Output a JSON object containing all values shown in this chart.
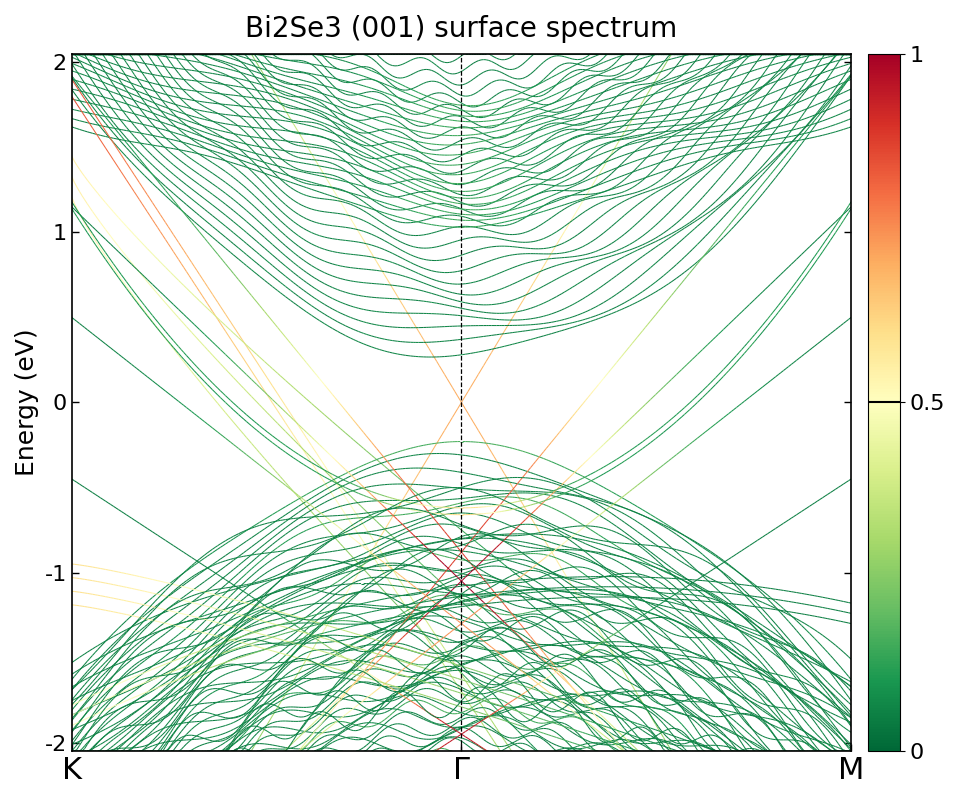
{
  "title": "Bi2Se3 (001) surface spectrum",
  "xlabel_labels": [
    "K",
    "Γ",
    "M"
  ],
  "ylabel": "Energy (eV)",
  "ylim": [
    -2.05,
    2.05
  ],
  "yticks": [
    -2,
    -1,
    0,
    1,
    2
  ],
  "colorbar_ticks": [
    0,
    0.5,
    1
  ],
  "colorbar_ticklabels": [
    "0",
    "0.5",
    "1"
  ],
  "nk": 300,
  "background_color": "#ffffff",
  "title_fontsize": 20,
  "label_fontsize": 18,
  "tick_fontsize": 16
}
